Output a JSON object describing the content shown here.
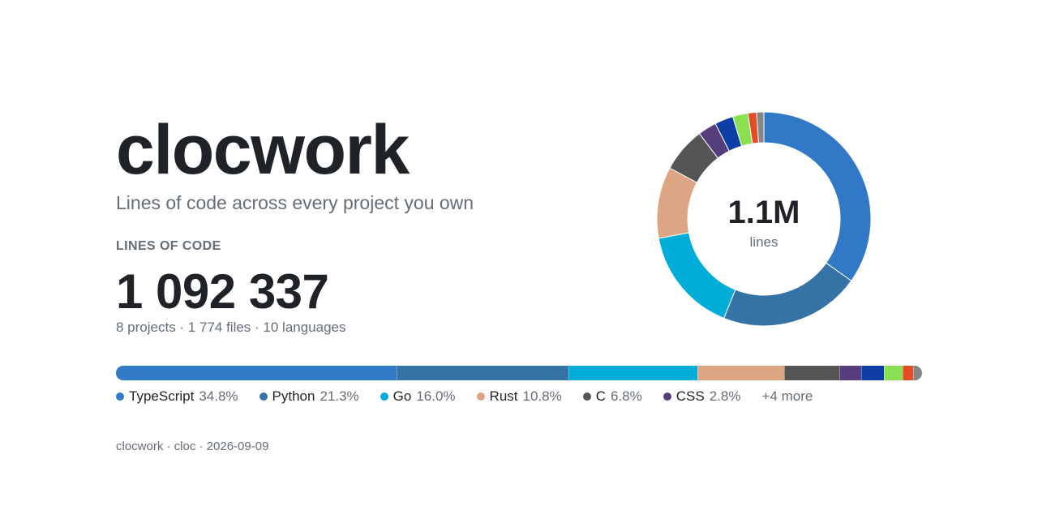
{
  "header": {
    "title": "clocwork",
    "subtitle": "Lines of code across every project you own"
  },
  "metric": {
    "label": "LINES OF CODE",
    "value": "1 092 337",
    "detail": "8 projects · 1 774 files · 10 languages"
  },
  "donut": {
    "center_value": "1.1M",
    "center_unit": "lines"
  },
  "legend": {
    "more_label": "+4 more"
  },
  "footer": {
    "text": "clocwork · cloc · 2026-09-09"
  },
  "chart_data": {
    "type": "pie",
    "total_lines": 1092337,
    "categories": [
      "TypeScript",
      "Python",
      "Go",
      "Rust",
      "C",
      "CSS",
      "",
      "",
      "",
      ""
    ],
    "values": [
      34.8,
      21.3,
      16.0,
      10.8,
      6.8,
      2.8,
      2.8,
      2.3,
      1.3,
      1.1
    ],
    "value_labels": [
      "34.8%",
      "21.3%",
      "16.0%",
      "10.8%",
      "6.8%",
      "2.8%",
      "",
      "",
      "",
      ""
    ],
    "colors": [
      "#3178c6",
      "#3572a5",
      "#00add8",
      "#dea584",
      "#555555",
      "#563d7c",
      "#0d3ea5",
      "#89e051",
      "#e34c26",
      "#858585"
    ],
    "legend_visible_count": 6
  }
}
